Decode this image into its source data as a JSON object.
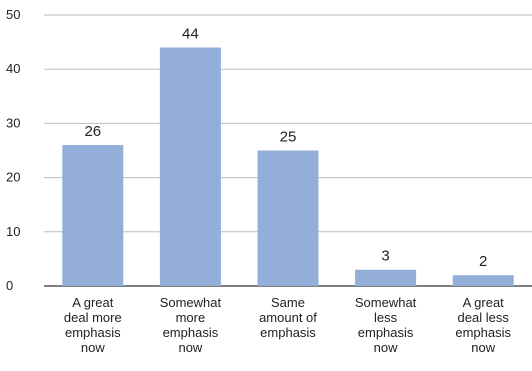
{
  "chart_data": {
    "type": "bar",
    "title": "",
    "xlabel": "",
    "ylabel": "",
    "ylim": [
      0,
      50
    ],
    "yticks": [
      0,
      10,
      20,
      30,
      40,
      50
    ],
    "grid": "horizontal",
    "legend": "none",
    "bar_color": "#93afd9",
    "categories": [
      [
        "A great",
        "deal more",
        "emphasis",
        "now"
      ],
      [
        "Somewhat",
        "more",
        "emphasis",
        "now"
      ],
      [
        "Same",
        "amount of",
        "emphasis"
      ],
      [
        "Somewhat",
        "less",
        "emphasis",
        "now"
      ],
      [
        "A great",
        "deal less",
        "emphasis",
        "now"
      ]
    ],
    "values": [
      26,
      44,
      25,
      3,
      2
    ]
  }
}
